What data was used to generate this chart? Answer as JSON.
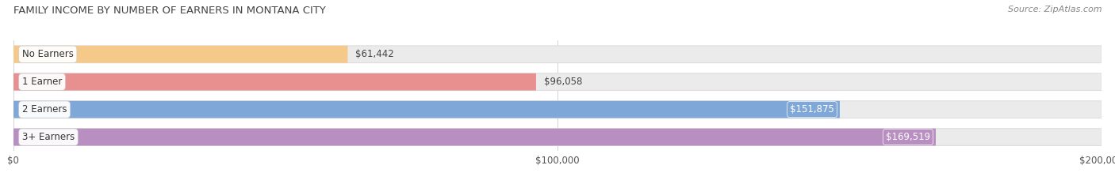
{
  "title": "Family Income by Number of Earners in Montana City",
  "source": "Source: ZipAtlas.com",
  "categories": [
    "No Earners",
    "1 Earner",
    "2 Earners",
    "3+ Earners"
  ],
  "values": [
    61442,
    96058,
    151875,
    169519
  ],
  "bar_colors": [
    "#f5c98a",
    "#e89090",
    "#7fa8d8",
    "#b88fc0"
  ],
  "background_color": "#f5f5f5",
  "bar_bg_color": "#e8e8e8",
  "xlim_max": 200000,
  "value_inside": [
    false,
    false,
    true,
    true
  ],
  "title_fontsize": 9.5,
  "source_fontsize": 8,
  "tick_fontsize": 8.5,
  "bar_height": 0.62,
  "label_pill_colors": [
    "#f5c98a",
    "#e89090",
    "#7fa8d8",
    "#b88fc0"
  ]
}
